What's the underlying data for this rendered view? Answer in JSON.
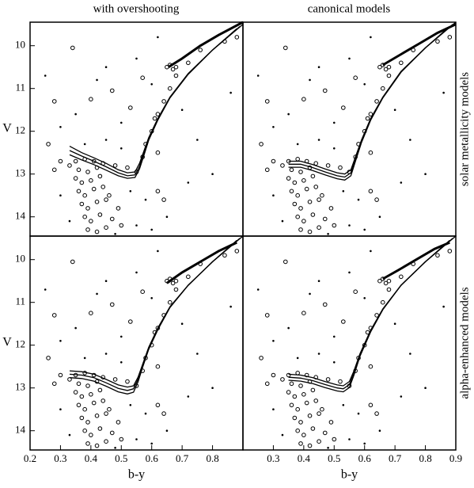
{
  "column_titles": [
    "with overshooting",
    "canonical models"
  ],
  "row_labels": [
    "solar metallicity models",
    "alpha-enhanced models"
  ],
  "stars": {
    "members": {
      "x": [
        0.35,
        0.38,
        0.41,
        0.44,
        0.36,
        0.39,
        0.42,
        0.35,
        0.37,
        0.4,
        0.43,
        0.36,
        0.38,
        0.41,
        0.44,
        0.37,
        0.39,
        0.42,
        0.45,
        0.38,
        0.4,
        0.43,
        0.47,
        0.39,
        0.42,
        0.45,
        0.5,
        0.48,
        0.52,
        0.55,
        0.3,
        0.28,
        0.33,
        0.46,
        0.49,
        0.57,
        0.58,
        0.6,
        0.61,
        0.62,
        0.64,
        0.66,
        0.68,
        0.72,
        0.76,
        0.84,
        0.88,
        0.65,
        0.66,
        0.67,
        0.68,
        0.34,
        0.28,
        0.4,
        0.47,
        0.53,
        0.57,
        0.26,
        0.62,
        0.62,
        0.64
      ],
      "y": [
        12.7,
        12.65,
        12.7,
        12.75,
        12.9,
        12.95,
        12.85,
        13.1,
        13.2,
        13.15,
        13.05,
        13.4,
        13.5,
        13.35,
        13.3,
        13.7,
        13.8,
        13.65,
        13.6,
        14.0,
        14.1,
        13.95,
        14.05,
        14.3,
        14.35,
        14.25,
        14.2,
        12.8,
        12.85,
        12.95,
        12.7,
        12.9,
        12.8,
        13.5,
        13.8,
        12.6,
        12.3,
        12.0,
        11.7,
        11.6,
        11.3,
        11.0,
        10.7,
        10.4,
        10.1,
        9.9,
        9.8,
        10.5,
        10.45,
        10.55,
        10.5,
        10.05,
        11.3,
        11.25,
        11.05,
        11.45,
        10.75,
        12.3,
        12.5,
        13.4,
        13.6
      ]
    },
    "field": {
      "x": [
        0.25,
        0.35,
        0.45,
        0.5,
        0.55,
        0.6,
        0.7,
        0.75,
        0.8,
        0.65,
        0.55,
        0.58,
        0.3,
        0.33,
        0.5,
        0.45,
        0.72,
        0.3,
        0.42,
        0.62,
        0.53,
        0.48,
        0.6,
        0.38,
        0.86
      ],
      "y": [
        10.7,
        11.6,
        10.5,
        11.8,
        10.3,
        10.9,
        11.5,
        12.2,
        13.0,
        14.0,
        14.2,
        13.6,
        13.5,
        14.1,
        12.4,
        12.2,
        13.2,
        11.9,
        10.8,
        9.8,
        13.4,
        14.4,
        14.3,
        12.3,
        11.1
      ]
    }
  },
  "chart_data": [
    {
      "type": "scatter",
      "ylabel": "V",
      "xlim": [
        0.2,
        0.9
      ],
      "ylim": [
        14.45,
        9.45
      ],
      "yticks": [
        10,
        11,
        12,
        13,
        14
      ],
      "lines": [
        {
          "x": [
            0.33,
            0.37,
            0.41,
            0.45,
            0.49,
            0.52,
            0.545,
            0.56,
            0.575,
            0.59,
            0.62,
            0.66,
            0.72,
            0.8,
            0.88
          ],
          "y": [
            12.35,
            12.5,
            12.62,
            12.75,
            12.9,
            12.97,
            12.95,
            12.75,
            12.45,
            12.15,
            11.7,
            11.2,
            10.65,
            10.1,
            9.6
          ]
        },
        {
          "x": [
            0.33,
            0.37,
            0.41,
            0.45,
            0.49,
            0.52,
            0.545,
            0.56,
            0.575,
            0.59,
            0.62,
            0.66,
            0.72,
            0.8,
            0.89
          ],
          "y": [
            12.45,
            12.58,
            12.7,
            12.83,
            12.97,
            13.04,
            13.02,
            12.82,
            12.5,
            12.18,
            11.72,
            11.21,
            10.66,
            10.1,
            9.55
          ]
        },
        {
          "x": [
            0.33,
            0.37,
            0.41,
            0.45,
            0.49,
            0.52,
            0.545,
            0.56,
            0.575,
            0.59,
            0.62,
            0.66,
            0.72,
            0.8,
            0.9
          ],
          "y": [
            12.55,
            12.67,
            12.78,
            12.91,
            13.04,
            13.1,
            13.08,
            12.88,
            12.55,
            12.21,
            11.74,
            11.22,
            10.67,
            10.1,
            9.5
          ]
        },
        {
          "x": [
            0.655,
            0.7,
            0.76,
            0.82,
            0.9
          ],
          "y": [
            10.5,
            10.3,
            10.0,
            9.75,
            9.45
          ]
        }
      ]
    },
    {
      "type": "scatter",
      "xlim": [
        0.2,
        0.9
      ],
      "ylim": [
        14.45,
        9.45
      ],
      "lines": [
        {
          "x": [
            0.35,
            0.39,
            0.43,
            0.47,
            0.51,
            0.535,
            0.555,
            0.57,
            0.59,
            0.62,
            0.66,
            0.72,
            0.8,
            0.88
          ],
          "y": [
            12.7,
            12.7,
            12.78,
            12.88,
            12.97,
            13.0,
            12.9,
            12.6,
            12.2,
            11.7,
            11.2,
            10.6,
            10.05,
            9.55
          ]
        },
        {
          "x": [
            0.35,
            0.39,
            0.43,
            0.47,
            0.51,
            0.535,
            0.555,
            0.57,
            0.59,
            0.62,
            0.66,
            0.72,
            0.8,
            0.89
          ],
          "y": [
            12.77,
            12.77,
            12.85,
            12.95,
            13.04,
            13.07,
            12.97,
            12.65,
            12.23,
            11.72,
            11.21,
            10.61,
            10.05,
            9.5
          ]
        },
        {
          "x": [
            0.35,
            0.39,
            0.43,
            0.47,
            0.51,
            0.535,
            0.555,
            0.57,
            0.59,
            0.62,
            0.66,
            0.72,
            0.8,
            0.9
          ],
          "y": [
            12.84,
            12.84,
            12.92,
            13.02,
            13.11,
            13.14,
            13.04,
            12.7,
            12.26,
            11.74,
            11.22,
            10.62,
            10.05,
            9.45
          ]
        },
        {
          "x": [
            0.66,
            0.72,
            0.78,
            0.84,
            0.9
          ],
          "y": [
            10.45,
            10.2,
            9.95,
            9.7,
            9.5
          ]
        }
      ]
    },
    {
      "type": "scatter",
      "ylabel": "V",
      "xlabel": "b-y",
      "xlim": [
        0.2,
        0.9
      ],
      "ylim": [
        14.45,
        9.45
      ],
      "xticks": [
        0.2,
        0.3,
        0.4,
        0.5,
        0.6,
        0.7,
        0.8
      ],
      "yticks": [
        10,
        11,
        12,
        13,
        14
      ],
      "lines": [
        {
          "x": [
            0.33,
            0.37,
            0.41,
            0.45,
            0.49,
            0.52,
            0.54,
            0.555,
            0.57,
            0.59,
            0.62,
            0.66,
            0.72,
            0.8,
            0.88
          ],
          "y": [
            12.6,
            12.62,
            12.68,
            12.8,
            12.93,
            12.98,
            12.95,
            12.75,
            12.45,
            12.05,
            11.6,
            11.1,
            10.6,
            10.05,
            9.55
          ]
        },
        {
          "x": [
            0.33,
            0.37,
            0.41,
            0.45,
            0.49,
            0.52,
            0.54,
            0.555,
            0.57,
            0.59,
            0.62,
            0.66,
            0.72,
            0.8,
            0.89
          ],
          "y": [
            12.68,
            12.7,
            12.76,
            12.88,
            13.01,
            13.06,
            13.02,
            12.8,
            12.48,
            12.08,
            11.62,
            11.11,
            10.6,
            10.05,
            9.5
          ]
        },
        {
          "x": [
            0.33,
            0.37,
            0.41,
            0.45,
            0.49,
            0.52,
            0.54,
            0.555,
            0.57,
            0.59,
            0.62,
            0.66,
            0.72,
            0.8,
            0.9
          ],
          "y": [
            12.76,
            12.78,
            12.84,
            12.96,
            13.09,
            13.14,
            13.1,
            12.86,
            12.52,
            12.1,
            11.64,
            11.12,
            10.6,
            10.05,
            9.45
          ]
        },
        {
          "x": [
            0.65,
            0.7,
            0.76,
            0.82,
            0.88
          ],
          "y": [
            10.55,
            10.3,
            10.05,
            9.8,
            9.6
          ]
        }
      ]
    },
    {
      "type": "scatter",
      "xlabel": "b-y",
      "xlim": [
        0.2,
        0.9
      ],
      "ylim": [
        14.45,
        9.45
      ],
      "xticks": [
        0.3,
        0.4,
        0.5,
        0.6,
        0.7,
        0.8,
        0.9
      ],
      "lines": [
        {
          "x": [
            0.35,
            0.39,
            0.43,
            0.47,
            0.51,
            0.53,
            0.55,
            0.565,
            0.585,
            0.62,
            0.66,
            0.72,
            0.8,
            0.88
          ],
          "y": [
            12.68,
            12.7,
            12.76,
            12.85,
            12.93,
            12.95,
            12.85,
            12.6,
            12.2,
            11.65,
            11.15,
            10.6,
            10.05,
            9.55
          ]
        },
        {
          "x": [
            0.35,
            0.39,
            0.43,
            0.47,
            0.51,
            0.53,
            0.55,
            0.565,
            0.585,
            0.62,
            0.66,
            0.72,
            0.8,
            0.89
          ],
          "y": [
            12.75,
            12.77,
            12.83,
            12.92,
            13.0,
            13.02,
            12.92,
            12.65,
            12.23,
            11.67,
            11.16,
            10.6,
            10.05,
            9.5
          ]
        },
        {
          "x": [
            0.35,
            0.39,
            0.43,
            0.47,
            0.51,
            0.53,
            0.55,
            0.565,
            0.585,
            0.62,
            0.66,
            0.72,
            0.8,
            0.9
          ],
          "y": [
            12.82,
            12.84,
            12.9,
            12.99,
            13.07,
            13.09,
            12.99,
            12.7,
            12.26,
            11.69,
            11.17,
            10.6,
            10.05,
            9.45
          ]
        },
        {
          "x": [
            0.66,
            0.71,
            0.77,
            0.83,
            0.88
          ],
          "y": [
            10.45,
            10.25,
            10.0,
            9.75,
            9.6
          ]
        }
      ]
    }
  ]
}
